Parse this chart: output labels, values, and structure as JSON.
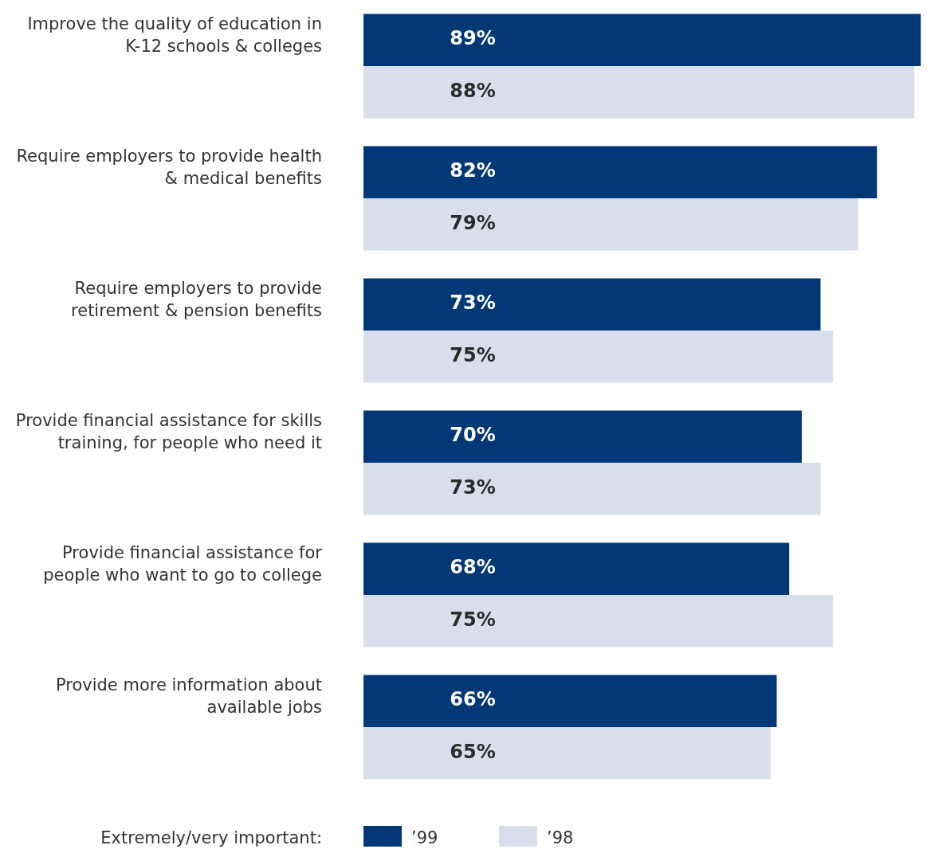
{
  "chart_data": {
    "type": "bar",
    "orientation": "horizontal",
    "categories": [
      "Improve the quality of education in K-12 schools & colleges",
      "Require employers to provide health & medical benefits",
      "Require employers to provide retirement & pension benefits",
      "Provide financial assistance for skills training, for people who need it",
      "Provide financial assistance for people who want to go to college",
      "Provide more information about available jobs"
    ],
    "series": [
      {
        "name": "’99",
        "color": "#023876",
        "values": [
          89,
          82,
          73,
          70,
          68,
          66
        ],
        "value_labels": [
          "89%",
          "82%",
          "73%",
          "70%",
          "68%",
          "66%"
        ]
      },
      {
        "name": "’98",
        "color": "#d9dfea",
        "values": [
          88,
          79,
          75,
          73,
          75,
          65
        ],
        "value_labels": [
          "88%",
          "79%",
          "75%",
          "73%",
          "75%",
          "65%"
        ]
      }
    ],
    "tick_labels": "y",
    "legend": "bottom",
    "legend_title": "Extremely/very important:"
  }
}
